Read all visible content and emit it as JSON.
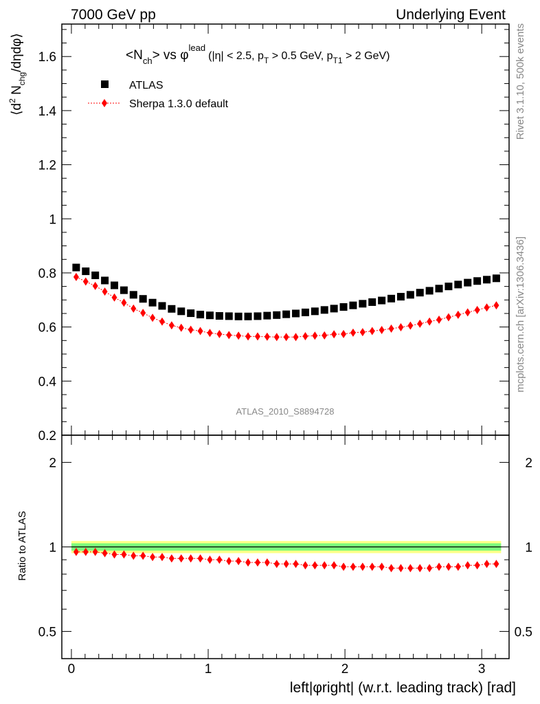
{
  "header": {
    "left": "7000 GeV pp",
    "right": "Underlying Event"
  },
  "side_labels": {
    "rivet": "Rivet 3.1.10,  500k events",
    "mcplots": "mcplots.cern.ch [arXiv:1306.3436]"
  },
  "chart_data": [
    {
      "type": "scatter",
      "title": "<N_ch> vs φ^lead (|η| < 2.5, p_T > 0.5 GeV, p_T1 > 2 GeV)",
      "title_parts": {
        "n": "<N",
        "ch": "ch",
        "vs": "> vs φ",
        "lead": "lead",
        "c1": "(|η| < 2.5, p",
        "T": "T",
        "c2": " > 0.5 GeV, p",
        "T1": "T1",
        "c3": " > 2 GeV)"
      },
      "ylabel": "⟨d² N_chg/dηdφ⟩",
      "ylabel_parts": {
        "a": "⟨d",
        "sup": "2",
        "b": " N",
        "sub": "chg",
        "c": "/dηdφ⟩"
      },
      "watermark": "ATLAS_2010_S8894728",
      "xlim": [
        -0.07,
        3.2
      ],
      "ylim": [
        0.2,
        1.72
      ],
      "y_ticks": [
        "0.2",
        "0.4",
        "0.6",
        "0.8",
        "1",
        "1.2",
        "1.4",
        "1.6"
      ],
      "legend_position": "top-left",
      "series": [
        {
          "name": "ATLAS",
          "marker": "square",
          "color": "#000000",
          "x": [
            0.0349,
            0.1047,
            0.1745,
            0.2443,
            0.3142,
            0.384,
            0.4538,
            0.5236,
            0.5934,
            0.6632,
            0.733,
            0.8029,
            0.8727,
            0.9425,
            1.0123,
            1.0821,
            1.1519,
            1.2217,
            1.2915,
            1.3614,
            1.4312,
            1.501,
            1.5708,
            1.6406,
            1.7104,
            1.7802,
            1.85,
            1.9199,
            1.9897,
            2.0595,
            2.1293,
            2.1991,
            2.2689,
            2.3387,
            2.4086,
            2.4784,
            2.5482,
            2.618,
            2.6878,
            2.7576,
            2.8274,
            2.8972,
            2.9671,
            3.0369,
            3.1067
          ],
          "values": [
            0.82,
            0.806,
            0.791,
            0.772,
            0.754,
            0.736,
            0.719,
            0.704,
            0.69,
            0.678,
            0.667,
            0.658,
            0.651,
            0.646,
            0.643,
            0.641,
            0.64,
            0.639,
            0.639,
            0.64,
            0.642,
            0.644,
            0.647,
            0.65,
            0.654,
            0.658,
            0.663,
            0.668,
            0.674,
            0.68,
            0.686,
            0.692,
            0.698,
            0.705,
            0.712,
            0.719,
            0.727,
            0.734,
            0.742,
            0.75,
            0.757,
            0.764,
            0.77,
            0.775,
            0.78
          ]
        },
        {
          "name": "Sherpa 1.3.0 default",
          "marker": "diamond",
          "color": "#ff0000",
          "x": [
            0.0349,
            0.1047,
            0.1745,
            0.2443,
            0.3142,
            0.384,
            0.4538,
            0.5236,
            0.5934,
            0.6632,
            0.733,
            0.8029,
            0.8727,
            0.9425,
            1.0123,
            1.0821,
            1.1519,
            1.2217,
            1.2915,
            1.3614,
            1.4312,
            1.501,
            1.5708,
            1.6406,
            1.7104,
            1.7802,
            1.85,
            1.9199,
            1.9897,
            2.0595,
            2.1293,
            2.1991,
            2.2689,
            2.3387,
            2.4086,
            2.4784,
            2.5482,
            2.618,
            2.6878,
            2.7576,
            2.8274,
            2.8972,
            2.9671,
            3.0369,
            3.1067
          ],
          "values": [
            0.785,
            0.768,
            0.752,
            0.731,
            0.709,
            0.69,
            0.668,
            0.652,
            0.634,
            0.62,
            0.606,
            0.597,
            0.59,
            0.585,
            0.578,
            0.574,
            0.57,
            0.568,
            0.565,
            0.565,
            0.564,
            0.563,
            0.563,
            0.563,
            0.566,
            0.568,
            0.569,
            0.573,
            0.574,
            0.579,
            0.581,
            0.585,
            0.589,
            0.594,
            0.599,
            0.605,
            0.612,
            0.62,
            0.627,
            0.636,
            0.645,
            0.654,
            0.663,
            0.672,
            0.68
          ]
        }
      ]
    },
    {
      "type": "scatter",
      "ylabel": "Ratio to ATLAS",
      "xlabel": "left|φright| (w.r.t. leading track) [rad]",
      "xlim": [
        -0.07,
        3.2
      ],
      "ylim": [
        0.4,
        2.5
      ],
      "y_scale": "log",
      "x_ticks": [
        "0",
        "1",
        "2",
        "3"
      ],
      "y_ticks": [
        "0.5",
        "1",
        "2"
      ],
      "reference_band": {
        "inner": 0.03,
        "outer": 0.05,
        "inner_color": "#7cfc7c",
        "outer_color": "#ffff88"
      },
      "series": [
        {
          "name": "Sherpa 1.3.0 default",
          "marker": "diamond",
          "color": "#ff0000",
          "values": [
            0.96,
            0.96,
            0.96,
            0.95,
            0.94,
            0.94,
            0.93,
            0.93,
            0.92,
            0.92,
            0.91,
            0.91,
            0.91,
            0.91,
            0.9,
            0.9,
            0.89,
            0.89,
            0.88,
            0.88,
            0.88,
            0.87,
            0.87,
            0.87,
            0.86,
            0.86,
            0.86,
            0.86,
            0.85,
            0.85,
            0.85,
            0.85,
            0.85,
            0.84,
            0.84,
            0.84,
            0.84,
            0.84,
            0.85,
            0.85,
            0.85,
            0.86,
            0.86,
            0.87,
            0.87
          ]
        }
      ]
    }
  ]
}
